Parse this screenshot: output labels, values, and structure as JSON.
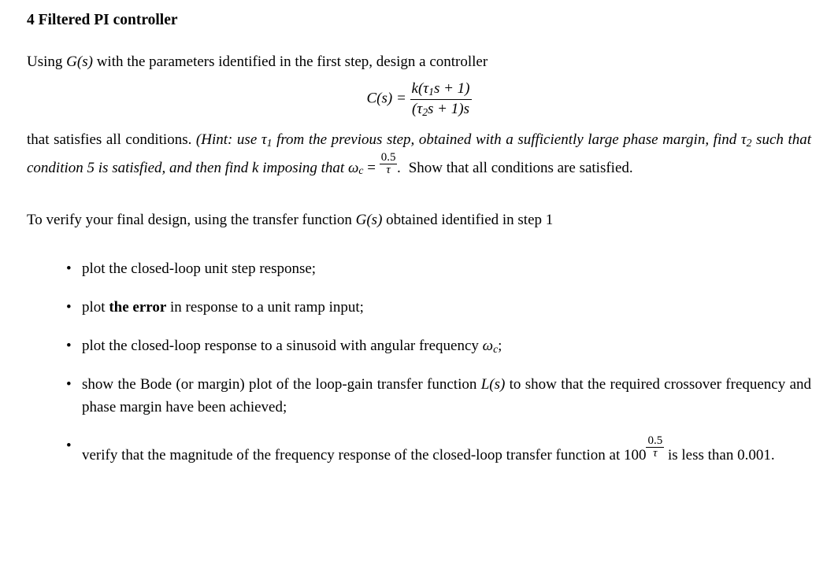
{
  "typography": {
    "body_font": "Times New Roman",
    "body_size_pt": 14,
    "heading_weight": "bold",
    "text_color": "#000000",
    "background_color": "#ffffff"
  },
  "heading": {
    "number": "4",
    "title": "Filtered PI controller"
  },
  "para1": {
    "pre": "Using ",
    "Gs": "G(s)",
    "post": " with the parameters identified in the first step, design a controller"
  },
  "equation": {
    "lhs": "C(s) = ",
    "num_pre": "k(",
    "tau1": "τ",
    "tau1_sub": "1",
    "num_post": "s + 1)",
    "den_pre": "(",
    "tau2": "τ",
    "tau2_sub": "2",
    "den_post": "s + 1)s"
  },
  "para2": {
    "a": "that satisfies all conditions. ",
    "hint_open": "(Hint: use ",
    "tau1": "τ",
    "tau1_sub": "1",
    "b": " from the previous step, obtained with a sufficiently large phase margin, find ",
    "tau2": "τ",
    "tau2_sub": "2",
    "c": " such that condition 5 is satisfied, and then find k imposing that ",
    "omega": "ω",
    "omega_sub": "c",
    "eq": " = ",
    "frac_num": "0.5",
    "frac_den": "τ",
    "d": ". ",
    "e": "Show that all conditions are satisfied."
  },
  "para3": {
    "a": "To verify your final design, using the transfer function ",
    "Gs": "G(s)",
    "b": " obtained identified in step 1"
  },
  "tasks": {
    "t1": "plot the closed-loop unit step response;",
    "t2_a": "plot ",
    "t2_b": "the error",
    "t2_c": " in response to a unit ramp input;",
    "t3_a": "plot the closed-loop response to a sinusoid with angular frequency ",
    "t3_om": "ω",
    "t3_sub": "c",
    "t3_b": ";",
    "t4_a": "show the Bode (or margin) plot of the loop-gain transfer function ",
    "t4_L": "L(s)",
    "t4_b": " to show that the required crossover frequency and phase margin have been achieved;",
    "t5_a": "verify that the magnitude of the frequency response of the closed-loop transfer function at ",
    "t5_100": "100",
    "t5_num": "0.5",
    "t5_den": "τ",
    "t5_b": " is less than 0.001."
  }
}
